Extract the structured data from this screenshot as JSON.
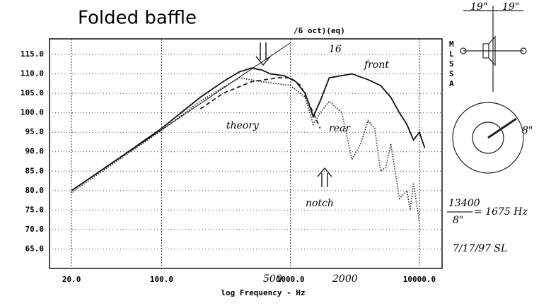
{
  "chart_data": {
    "type": "line",
    "title": "Folded baffle",
    "subtitle": "/6 oct)(eq)",
    "side_label": "MLSSA",
    "x_label": "log Frequency - Hz",
    "xscale": "log",
    "xlim": [
      13.5,
      15000
    ],
    "ylim": [
      60,
      119
    ],
    "grid": true,
    "xticks": [
      {
        "value": 20,
        "label": "20.0"
      },
      {
        "value": 100,
        "label": "100.0"
      },
      {
        "value": 1000,
        "label": "1000.0"
      },
      {
        "value": 10000,
        "label": "10000.0"
      }
    ],
    "yticks": [
      {
        "value": 65,
        "label": "65.0"
      },
      {
        "value": 70,
        "label": "70.0"
      },
      {
        "value": 75,
        "label": "75.0"
      },
      {
        "value": 80,
        "label": "80.0"
      },
      {
        "value": 85,
        "label": "85.0"
      },
      {
        "value": 90,
        "label": "90.0"
      },
      {
        "value": 95,
        "label": "95.0"
      },
      {
        "value": 100,
        "label": "100.0"
      },
      {
        "value": 105,
        "label": "105.0"
      },
      {
        "value": 110,
        "label": "110.0"
      },
      {
        "value": 115,
        "label": "115.0"
      }
    ],
    "series": [
      {
        "color": "#111",
        "style": "solid",
        "x": [
          20,
          50,
          100,
          200,
          300,
          400,
          500,
          600,
          700,
          900,
          1100,
          1300,
          1500,
          1700,
          2000,
          3000,
          4000,
          5000,
          6000,
          7000,
          8000,
          9000,
          10000,
          11000
        ],
        "values": [
          80,
          89,
          96,
          104,
          108,
          110.5,
          111.5,
          111,
          110,
          109.5,
          108,
          105,
          99,
          103,
          109,
          110,
          108.5,
          107,
          104,
          100,
          97,
          93,
          95,
          91
        ]
      },
      {
        "color": "#333",
        "style": "dotted",
        "x": [
          20,
          100,
          200,
          400,
          600,
          1000,
          1300,
          1500,
          1700,
          2000,
          2500,
          3000,
          3500,
          4000,
          4500,
          5000,
          5500,
          6000,
          7000,
          8000,
          8500,
          9000,
          10000
        ],
        "values": [
          79.5,
          95.5,
          103,
          109,
          108,
          107,
          104,
          97,
          100,
          103,
          100,
          88,
          92,
          98,
          96,
          85,
          86,
          92,
          78,
          80,
          75,
          82,
          72
        ]
      },
      {
        "color": "#222",
        "style": "dashed",
        "x": [
          200,
          300,
          500,
          800,
          1000,
          1200,
          1500,
          1700
        ],
        "values": [
          101,
          105,
          108,
          109,
          109,
          107,
          100,
          96
        ]
      },
      {
        "color": "#111",
        "style": "thin",
        "x": [
          20,
          1000
        ],
        "values": [
          80,
          118
        ]
      }
    ],
    "annotations": [
      "front",
      "theory",
      "rear",
      "notch",
      "16",
      "500",
      "2000"
    ],
    "notes": [
      "19\"",
      "19\"",
      "8\"",
      "13400",
      "8\"",
      "= 1675 Hz",
      "7/17/97 SL"
    ]
  }
}
